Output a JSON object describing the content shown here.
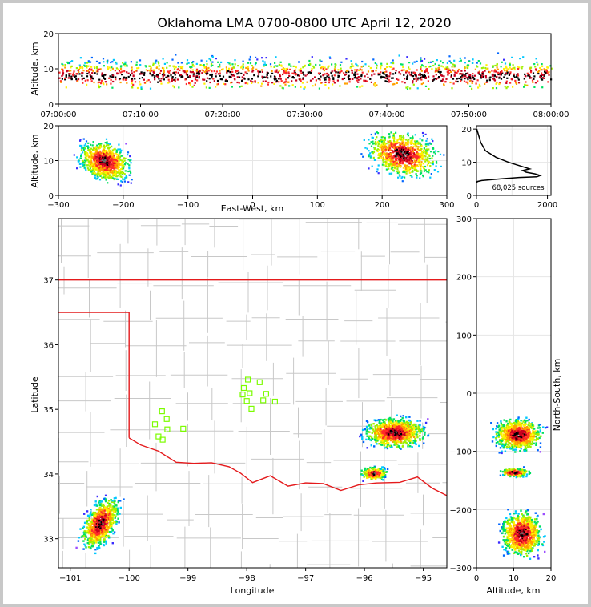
{
  "title": "Oklahoma LMA 0700-0800 UTC April 12, 2020",
  "colors": {
    "scale": [
      "#ffffff",
      "#d7b5ff",
      "#9b4dff",
      "#3a2cff",
      "#0066ff",
      "#00c8ff",
      "#00e060",
      "#9ef000",
      "#fff000",
      "#ffa000",
      "#ff2a2a",
      "#c8001e",
      "#000000",
      "#707070",
      "#ffffff"
    ],
    "state_line": "#e41a1c",
    "county_line": "#c8c8c8",
    "station": "#7cfc00",
    "grid": "#e6e6e6"
  },
  "chart_data": [
    {
      "id": "time-height",
      "type": "heatmap",
      "xticks": [
        "07:00:00",
        "07:10:00",
        "07:20:00",
        "07:30:00",
        "07:40:00",
        "07:50:00",
        "08:00:00"
      ],
      "ylabel": "Altitude, km",
      "ylim": [
        0,
        20
      ],
      "yticks": [
        "0",
        "10",
        "20"
      ]
    },
    {
      "id": "east-west-altitude",
      "type": "heatmap",
      "xlabel": "East-West, km",
      "xlim": [
        -300,
        300
      ],
      "xticks": [
        "−300",
        "−200",
        "−100",
        "0",
        "100",
        "200",
        "300"
      ],
      "ylabel": "Altitude, km",
      "ylim": [
        0,
        20
      ],
      "yticks": [
        "0",
        "10",
        "20"
      ],
      "clusters": [
        {
          "x": -230,
          "y": 10,
          "rx": 50,
          "ry": 7
        },
        {
          "x": 230,
          "y": 12,
          "rx": 70,
          "ry": 8
        }
      ]
    },
    {
      "id": "altitude-histogram",
      "type": "line",
      "annotation": "68,025 sources",
      "xlim": [
        0,
        2100
      ],
      "xticks": [
        "0",
        "2000"
      ],
      "ylim": [
        0,
        21
      ],
      "yticks": [
        "0",
        "10",
        "20"
      ],
      "x": [
        0,
        30,
        150,
        700,
        1200,
        1700,
        1800,
        1650,
        1400,
        1300,
        1500,
        1200,
        900,
        550,
        250,
        120,
        50,
        10
      ],
      "y": [
        3.8,
        4.2,
        4.5,
        5.0,
        5.4,
        5.6,
        6.0,
        6.5,
        7.0,
        7.5,
        8.0,
        9.0,
        10.0,
        11.5,
        13.5,
        16.0,
        18.5,
        20.0
      ]
    },
    {
      "id": "plan-view",
      "type": "heatmap",
      "xlabel": "Longitude",
      "xlim": [
        -101.2,
        -94.6
      ],
      "xticks": [
        "−101",
        "−100",
        "−99",
        "−98",
        "−97",
        "−96",
        "−95"
      ],
      "ylabel": "Latitude",
      "ylim": [
        32.55,
        37.95
      ],
      "yticks": [
        "33",
        "34",
        "35",
        "36",
        "37"
      ],
      "stations_lonlat": [
        [
          -97.98,
          35.46
        ],
        [
          -97.78,
          35.42
        ],
        [
          -98.05,
          35.33
        ],
        [
          -97.95,
          35.25
        ],
        [
          -98.07,
          35.23
        ],
        [
          -97.67,
          35.24
        ],
        [
          -97.72,
          35.14
        ],
        [
          -98.0,
          35.13
        ],
        [
          -97.52,
          35.12
        ],
        [
          -97.92,
          35.01
        ],
        [
          -99.44,
          34.97
        ],
        [
          -99.36,
          34.85
        ],
        [
          -99.56,
          34.77
        ],
        [
          -99.08,
          34.7
        ],
        [
          -99.35,
          34.69
        ],
        [
          -99.5,
          34.58
        ],
        [
          -99.43,
          34.53
        ]
      ],
      "clusters": [
        {
          "lon": -100.5,
          "lat": 33.25,
          "rx": 0.35,
          "ry": 0.5
        },
        {
          "lon": -95.5,
          "lat": 34.65,
          "rx": 0.65,
          "ry": 0.3
        },
        {
          "lon": -95.85,
          "lat": 34.02,
          "rx": 0.28,
          "ry": 0.13
        }
      ]
    },
    {
      "id": "altitude-north-south",
      "type": "heatmap",
      "xlabel": "Altitude, km",
      "xlim": [
        0,
        20
      ],
      "xticks": [
        "0",
        "10",
        "20"
      ],
      "ylabel": "North-South, km",
      "ylim": [
        -300,
        300
      ],
      "yticks": [
        "−300",
        "−200",
        "−100",
        "0",
        "100",
        "200",
        "300"
      ],
      "clusters": [
        {
          "x": 11,
          "y": -70,
          "rx": 8,
          "ry": 35
        },
        {
          "x": 10,
          "y": -135,
          "rx": 5,
          "ry": 10
        },
        {
          "x": 12,
          "y": -240,
          "rx": 7,
          "ry": 50
        }
      ]
    }
  ]
}
